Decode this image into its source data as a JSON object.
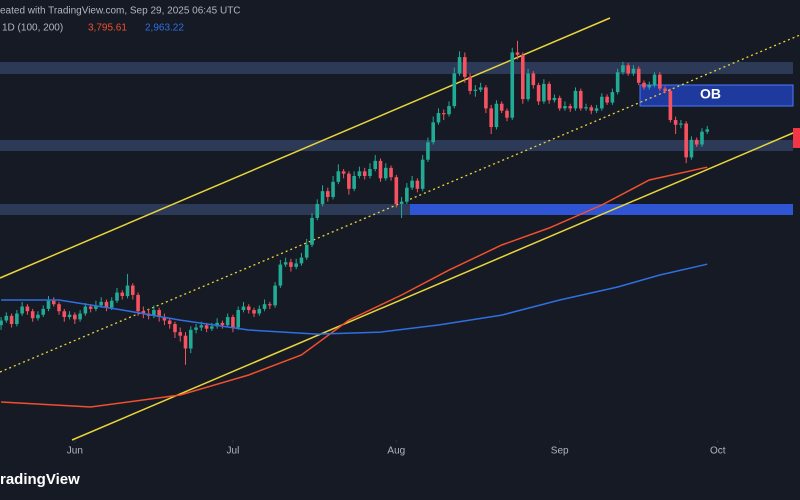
{
  "chart_data": {
    "type": "candlestick",
    "header": "eated with TradingView.com, Sep 29, 2025 06:45 UTC",
    "indicator": "1D (100, 200)",
    "brand": "radingView",
    "annotation": "OB",
    "up_color": "#22ab94",
    "down_color": "#f7525f",
    "xlim": [
      -0.2,
      151.6
    ],
    "xticks": [
      {
        "value": 14,
        "label": "Jun"
      },
      {
        "value": 44,
        "label": "Jul"
      },
      {
        "value": 75,
        "label": "Aug"
      },
      {
        "value": 106,
        "label": "Sep"
      },
      {
        "value": 136,
        "label": "Oct"
      }
    ],
    "ylim": [
      1455,
      5230
    ],
    "ohlc": [
      [
        2440,
        2510,
        2400,
        2480
      ],
      [
        2480,
        2550,
        2460,
        2520
      ],
      [
        2520,
        2540,
        2420,
        2450
      ],
      [
        2450,
        2570,
        2430,
        2540
      ],
      [
        2540,
        2640,
        2520,
        2600
      ],
      [
        2600,
        2620,
        2530,
        2560
      ],
      [
        2560,
        2580,
        2470,
        2500
      ],
      [
        2500,
        2560,
        2480,
        2530
      ],
      [
        2530,
        2610,
        2510,
        2580
      ],
      [
        2580,
        2690,
        2560,
        2650
      ],
      [
        2650,
        2680,
        2600,
        2620
      ],
      [
        2620,
        2640,
        2530,
        2560
      ],
      [
        2560,
        2580,
        2470,
        2510
      ],
      [
        2510,
        2560,
        2490,
        2530
      ],
      [
        2530,
        2550,
        2450,
        2490
      ],
      [
        2490,
        2570,
        2470,
        2540
      ],
      [
        2540,
        2630,
        2520,
        2600
      ],
      [
        2600,
        2620,
        2550,
        2580
      ],
      [
        2580,
        2650,
        2560,
        2610
      ],
      [
        2610,
        2680,
        2590,
        2640
      ],
      [
        2640,
        2660,
        2560,
        2590
      ],
      [
        2590,
        2680,
        2570,
        2650
      ],
      [
        2650,
        2760,
        2630,
        2720
      ],
      [
        2720,
        2740,
        2660,
        2690
      ],
      [
        2690,
        2880,
        2670,
        2780
      ],
      [
        2780,
        2800,
        2660,
        2700
      ],
      [
        2700,
        2720,
        2520,
        2560
      ],
      [
        2560,
        2600,
        2500,
        2540
      ],
      [
        2540,
        2580,
        2490,
        2520
      ],
      [
        2520,
        2610,
        2500,
        2570
      ],
      [
        2570,
        2590,
        2470,
        2510
      ],
      [
        2510,
        2540,
        2440,
        2480
      ],
      [
        2480,
        2500,
        2410,
        2450
      ],
      [
        2450,
        2470,
        2330,
        2380
      ],
      [
        2380,
        2420,
        2300,
        2350
      ],
      [
        2350,
        2380,
        2100,
        2240
      ],
      [
        2240,
        2430,
        2200,
        2400
      ],
      [
        2400,
        2450,
        2370,
        2420
      ],
      [
        2420,
        2470,
        2390,
        2440
      ],
      [
        2440,
        2460,
        2380,
        2410
      ],
      [
        2410,
        2460,
        2390,
        2430
      ],
      [
        2430,
        2500,
        2410,
        2460
      ],
      [
        2460,
        2480,
        2410,
        2440
      ],
      [
        2440,
        2540,
        2420,
        2510
      ],
      [
        2510,
        2530,
        2380,
        2420
      ],
      [
        2420,
        2600,
        2400,
        2570
      ],
      [
        2570,
        2640,
        2550,
        2600
      ],
      [
        2600,
        2620,
        2540,
        2570
      ],
      [
        2570,
        2590,
        2510,
        2540
      ],
      [
        2540,
        2610,
        2520,
        2580
      ],
      [
        2580,
        2660,
        2560,
        2620
      ],
      [
        2620,
        2640,
        2580,
        2610
      ],
      [
        2610,
        2810,
        2590,
        2780
      ],
      [
        2780,
        3000,
        2760,
        2960
      ],
      [
        2960,
        3020,
        2940,
        2980
      ],
      [
        2980,
        3010,
        2900,
        2940
      ],
      [
        2940,
        3010,
        2920,
        2970
      ],
      [
        2970,
        3060,
        2950,
        3020
      ],
      [
        3020,
        3180,
        3000,
        3130
      ],
      [
        3130,
        3400,
        3110,
        3360
      ],
      [
        3360,
        3520,
        3340,
        3480
      ],
      [
        3480,
        3640,
        3460,
        3590
      ],
      [
        3590,
        3620,
        3500,
        3540
      ],
      [
        3540,
        3720,
        3520,
        3670
      ],
      [
        3670,
        3820,
        3650,
        3760
      ],
      [
        3760,
        3780,
        3700,
        3740
      ],
      [
        3740,
        3760,
        3560,
        3610
      ],
      [
        3610,
        3760,
        3590,
        3720
      ],
      [
        3720,
        3800,
        3700,
        3760
      ],
      [
        3760,
        3790,
        3690,
        3720
      ],
      [
        3720,
        3830,
        3700,
        3780
      ],
      [
        3780,
        3900,
        3760,
        3850
      ],
      [
        3850,
        3870,
        3670,
        3700
      ],
      [
        3700,
        3830,
        3680,
        3790
      ],
      [
        3790,
        3810,
        3680,
        3710
      ],
      [
        3710,
        3730,
        3450,
        3480
      ],
      [
        3480,
        3540,
        3360,
        3500
      ],
      [
        3500,
        3660,
        3480,
        3620
      ],
      [
        3620,
        3720,
        3600,
        3680
      ],
      [
        3680,
        3700,
        3580,
        3610
      ],
      [
        3610,
        3900,
        3590,
        3860
      ],
      [
        3860,
        4050,
        3840,
        4010
      ],
      [
        4010,
        4230,
        3990,
        4180
      ],
      [
        4180,
        4300,
        4160,
        4260
      ],
      [
        4260,
        4290,
        4200,
        4250
      ],
      [
        4250,
        4360,
        4230,
        4320
      ],
      [
        4320,
        4650,
        4300,
        4600
      ],
      [
        4600,
        4790,
        4580,
        4740
      ],
      [
        4740,
        4780,
        4520,
        4570
      ],
      [
        4570,
        4600,
        4420,
        4450
      ],
      [
        4450,
        4500,
        4400,
        4460
      ],
      [
        4460,
        4520,
        4440,
        4480
      ],
      [
        4480,
        4500,
        4260,
        4300
      ],
      [
        4300,
        4330,
        4080,
        4140
      ],
      [
        4140,
        4370,
        4120,
        4340
      ],
      [
        4340,
        4360,
        4260,
        4280
      ],
      [
        4280,
        4300,
        4190,
        4220
      ],
      [
        4220,
        4820,
        4200,
        4780
      ],
      [
        4780,
        4880,
        4720,
        4760
      ],
      [
        4760,
        4780,
        4340,
        4380
      ],
      [
        4380,
        4640,
        4360,
        4600
      ],
      [
        4600,
        4620,
        4470,
        4500
      ],
      [
        4500,
        4520,
        4330,
        4360
      ],
      [
        4360,
        4550,
        4340,
        4510
      ],
      [
        4510,
        4530,
        4340,
        4370
      ],
      [
        4370,
        4420,
        4350,
        4390
      ],
      [
        4390,
        4410,
        4280,
        4300
      ],
      [
        4300,
        4360,
        4280,
        4320
      ],
      [
        4320,
        4340,
        4270,
        4300
      ],
      [
        4300,
        4480,
        4280,
        4450
      ],
      [
        4450,
        4470,
        4280,
        4300
      ],
      [
        4300,
        4340,
        4280,
        4310
      ],
      [
        4310,
        4330,
        4250,
        4280
      ],
      [
        4280,
        4330,
        4260,
        4300
      ],
      [
        4300,
        4430,
        4280,
        4400
      ],
      [
        4400,
        4420,
        4330,
        4350
      ],
      [
        4350,
        4470,
        4330,
        4440
      ],
      [
        4440,
        4640,
        4420,
        4610
      ],
      [
        4610,
        4700,
        4590,
        4670
      ],
      [
        4670,
        4690,
        4580,
        4600
      ],
      [
        4600,
        4670,
        4580,
        4640
      ],
      [
        4640,
        4660,
        4500,
        4520
      ],
      [
        4520,
        4540,
        4460,
        4480
      ],
      [
        4480,
        4530,
        4460,
        4500
      ],
      [
        4500,
        4610,
        4480,
        4590
      ],
      [
        4590,
        4610,
        4450,
        4470
      ],
      [
        4470,
        4490,
        4430,
        4450
      ],
      [
        4450,
        4470,
        4180,
        4200
      ],
      [
        4200,
        4230,
        4080,
        4160
      ],
      [
        4160,
        4200,
        4130,
        4170
      ],
      [
        4170,
        4190,
        3830,
        3880
      ],
      [
        3880,
        4060,
        3860,
        4030
      ],
      [
        4030,
        4050,
        3970,
        3990
      ],
      [
        3990,
        4130,
        3970,
        4100
      ],
      [
        4100,
        4150,
        4080,
        4120
      ]
    ],
    "series": [
      {
        "color": "#f0502c",
        "x": [
          0,
          17,
          34,
          47,
          57,
          66,
          76,
          85,
          95,
          104,
          114,
          123,
          134
        ],
        "values": [
          1781,
          1738,
          1841,
          2013,
          2184,
          2484,
          2699,
          2913,
          3128,
          3274,
          3471,
          3686,
          3795.61
        ],
        "last_label": "3,795.61"
      },
      {
        "color": "#2f6fe0",
        "x": [
          0,
          11,
          23,
          34,
          47,
          60,
          72,
          83,
          95,
          106,
          117,
          125,
          134
        ],
        "values": [
          2656,
          2656,
          2570,
          2484,
          2399,
          2364,
          2381,
          2442,
          2527,
          2656,
          2768,
          2871,
          2963.22
        ],
        "last_label": "2,963.22"
      }
    ]
  }
}
